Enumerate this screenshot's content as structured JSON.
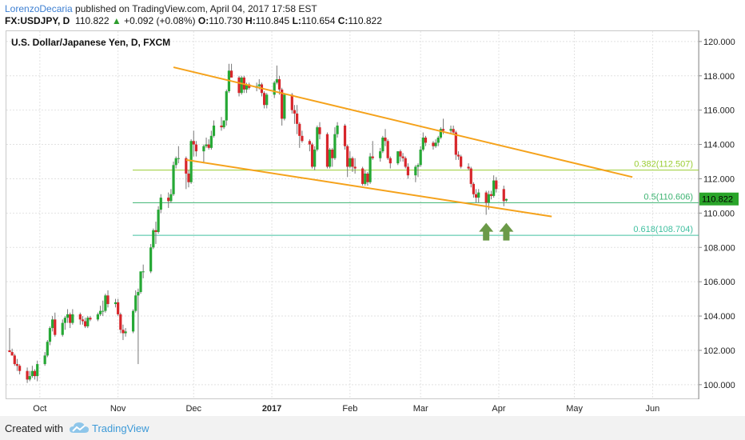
{
  "header": {
    "author": "LorenzoDecaria",
    "published_text": " published on TradingView.com, April 04, 2017 17:58 EST",
    "symbol": "FX:USDJPY, D",
    "last": "110.822",
    "change_arrow": "▲",
    "change": "+0.092 (+0.08%)",
    "open_label": "O:",
    "open": "110.730",
    "high_label": "H:",
    "high": "110.845",
    "low_label": "L:",
    "low": "110.654",
    "close_label": "C:",
    "close": "110.822"
  },
  "footer": {
    "created_with": "Created with",
    "brand": "TradingView"
  },
  "colors": {
    "up": "#26a835",
    "down": "#d7262b",
    "trendline": "#f5a21b",
    "fib_382": "#9acd32",
    "fib_5": "#3cb371",
    "fib_618": "#40c0a0",
    "arrow": "#6b9a48",
    "price_tag": "#2aa52a"
  },
  "chart_data": {
    "type": "candlestick",
    "title": "U.S. Dollar/Japanese Yen, D, FXCM",
    "y_range": [
      99.2,
      120.6
    ],
    "y_ticks": [
      "100.000",
      "102.000",
      "104.000",
      "106.000",
      "108.000",
      "110.000",
      "112.000",
      "114.000",
      "116.000",
      "118.000",
      "120.000"
    ],
    "x_ticks": [
      "Oct",
      "Nov",
      "Dec",
      "2017",
      "Feb",
      "Mar",
      "Apr",
      "May",
      "Jun"
    ],
    "x_tick_dates": [
      "2016-10-01",
      "2016-11-01",
      "2016-12-01",
      "2017-01-01",
      "2017-02-01",
      "2017-03-01",
      "2017-04-01",
      "2017-05-01",
      "2017-06-01"
    ],
    "x_range": [
      "2016-09-19",
      "2017-06-18"
    ],
    "grid": true,
    "last_price": "110.822",
    "fib_levels": [
      {
        "label": "0.382(112.507)",
        "value": 112.507,
        "color_key": "fib_382"
      },
      {
        "label": "0.5(110.606)",
        "value": 110.606,
        "color_key": "fib_5"
      },
      {
        "label": "0.618(108.704)",
        "value": 108.704,
        "color_key": "fib_618"
      }
    ],
    "trendlines": [
      {
        "from": [
          "2016-11-23",
          118.5
        ],
        "to": [
          "2017-05-24",
          112.1
        ]
      },
      {
        "from": [
          "2016-11-28",
          113.1
        ],
        "to": [
          "2017-04-22",
          109.8
        ]
      }
    ],
    "arrows": [
      {
        "date": "2017-03-27",
        "value": 108.4
      },
      {
        "date": "2017-04-04",
        "value": 108.4
      }
    ],
    "candles": [
      {
        "d": "2016-09-19",
        "o": 102.0,
        "h": 103.3,
        "l": 101.9,
        "c": 101.9
      },
      {
        "d": "2016-09-20",
        "o": 101.9,
        "h": 102.1,
        "l": 101.7,
        "c": 101.7
      },
      {
        "d": "2016-09-21",
        "o": 101.7,
        "h": 101.8,
        "l": 101.1,
        "c": 101.2
      },
      {
        "d": "2016-09-22",
        "o": 101.2,
        "h": 101.5,
        "l": 100.8,
        "c": 101.1
      },
      {
        "d": "2016-09-23",
        "o": 101.1,
        "h": 101.2,
        "l": 100.6,
        "c": 100.8
      },
      {
        "d": "2016-09-26",
        "o": 100.8,
        "h": 101.0,
        "l": 100.1,
        "c": 100.3
      },
      {
        "d": "2016-09-27",
        "o": 100.3,
        "h": 100.8,
        "l": 100.2,
        "c": 100.5
      },
      {
        "d": "2016-09-28",
        "o": 100.5,
        "h": 101.1,
        "l": 100.4,
        "c": 100.8
      },
      {
        "d": "2016-09-29",
        "o": 100.8,
        "h": 100.9,
        "l": 100.3,
        "c": 100.5
      },
      {
        "d": "2016-09-30",
        "o": 100.5,
        "h": 101.4,
        "l": 100.2,
        "c": 101.2
      },
      {
        "d": "2016-10-03",
        "o": 101.2,
        "h": 101.9,
        "l": 101.1,
        "c": 101.7
      },
      {
        "d": "2016-10-04",
        "o": 101.7,
        "h": 102.6,
        "l": 101.6,
        "c": 102.5
      },
      {
        "d": "2016-10-05",
        "o": 102.5,
        "h": 103.4,
        "l": 102.3,
        "c": 103.3
      },
      {
        "d": "2016-10-06",
        "o": 103.3,
        "h": 104.0,
        "l": 103.1,
        "c": 103.8
      },
      {
        "d": "2016-10-07",
        "o": 103.8,
        "h": 104.2,
        "l": 102.8,
        "c": 102.9
      },
      {
        "d": "2016-10-10",
        "o": 102.9,
        "h": 103.8,
        "l": 102.8,
        "c": 103.6
      },
      {
        "d": "2016-10-11",
        "o": 103.6,
        "h": 104.0,
        "l": 103.2,
        "c": 103.9
      },
      {
        "d": "2016-10-12",
        "o": 103.9,
        "h": 104.4,
        "l": 103.6,
        "c": 104.1
      },
      {
        "d": "2016-10-13",
        "o": 104.1,
        "h": 104.2,
        "l": 103.3,
        "c": 103.6
      },
      {
        "d": "2016-10-14",
        "o": 103.6,
        "h": 104.4,
        "l": 103.5,
        "c": 104.1
      },
      {
        "d": "2016-10-17",
        "o": 104.1,
        "h": 104.2,
        "l": 103.5,
        "c": 103.8
      },
      {
        "d": "2016-10-18",
        "o": 103.8,
        "h": 104.0,
        "l": 103.5,
        "c": 103.7
      },
      {
        "d": "2016-10-19",
        "o": 103.7,
        "h": 103.9,
        "l": 103.3,
        "c": 103.4
      },
      {
        "d": "2016-10-20",
        "o": 103.4,
        "h": 104.0,
        "l": 103.3,
        "c": 103.9
      },
      {
        "d": "2016-10-21",
        "o": 103.9,
        "h": 104.0,
        "l": 103.7,
        "c": 103.8
      },
      {
        "d": "2016-10-24",
        "o": 103.8,
        "h": 104.2,
        "l": 103.7,
        "c": 104.1
      },
      {
        "d": "2016-10-25",
        "o": 104.1,
        "h": 104.6,
        "l": 104.0,
        "c": 104.3
      },
      {
        "d": "2016-10-26",
        "o": 104.3,
        "h": 104.9,
        "l": 104.0,
        "c": 104.3
      },
      {
        "d": "2016-10-27",
        "o": 104.3,
        "h": 105.3,
        "l": 104.2,
        "c": 105.2
      },
      {
        "d": "2016-10-28",
        "o": 105.2,
        "h": 105.5,
        "l": 104.5,
        "c": 104.7
      },
      {
        "d": "2016-10-31",
        "o": 104.7,
        "h": 105.0,
        "l": 104.5,
        "c": 104.8
      },
      {
        "d": "2016-11-01",
        "o": 104.8,
        "h": 105.0,
        "l": 104.0,
        "c": 104.1
      },
      {
        "d": "2016-11-02",
        "o": 104.1,
        "h": 104.2,
        "l": 103.0,
        "c": 103.2
      },
      {
        "d": "2016-11-03",
        "o": 103.2,
        "h": 103.5,
        "l": 102.6,
        "c": 103.0
      },
      {
        "d": "2016-11-04",
        "o": 103.0,
        "h": 103.3,
        "l": 102.8,
        "c": 103.1
      },
      {
        "d": "2016-11-07",
        "o": 103.1,
        "h": 104.4,
        "l": 103.0,
        "c": 104.3
      },
      {
        "d": "2016-11-08",
        "o": 104.3,
        "h": 105.5,
        "l": 104.2,
        "c": 105.2
      },
      {
        "d": "2016-11-09",
        "o": 105.2,
        "h": 105.6,
        "l": 101.2,
        "c": 105.4
      },
      {
        "d": "2016-11-10",
        "o": 105.4,
        "h": 106.6,
        "l": 105.3,
        "c": 106.6
      },
      {
        "d": "2016-11-11",
        "o": 106.6,
        "h": 107.0,
        "l": 106.2,
        "c": 106.6
      },
      {
        "d": "2016-11-14",
        "o": 106.6,
        "h": 108.2,
        "l": 106.5,
        "c": 108.0
      },
      {
        "d": "2016-11-15",
        "o": 108.0,
        "h": 109.1,
        "l": 107.9,
        "c": 109.0
      },
      {
        "d": "2016-11-16",
        "o": 109.0,
        "h": 109.5,
        "l": 108.2,
        "c": 108.9
      },
      {
        "d": "2016-11-17",
        "o": 108.9,
        "h": 110.4,
        "l": 108.8,
        "c": 110.2
      },
      {
        "d": "2016-11-18",
        "o": 110.2,
        "h": 111.1,
        "l": 110.0,
        "c": 110.9
      },
      {
        "d": "2016-11-21",
        "o": 110.9,
        "h": 111.2,
        "l": 110.3,
        "c": 110.7
      },
      {
        "d": "2016-11-22",
        "o": 110.7,
        "h": 111.4,
        "l": 110.6,
        "c": 111.1
      },
      {
        "d": "2016-11-23",
        "o": 111.1,
        "h": 113.0,
        "l": 111.0,
        "c": 112.8
      },
      {
        "d": "2016-11-24",
        "o": 112.8,
        "h": 113.3,
        "l": 112.6,
        "c": 113.2
      },
      {
        "d": "2016-11-25",
        "o": 113.2,
        "h": 113.9,
        "l": 112.9,
        "c": 113.2
      },
      {
        "d": "2016-11-28",
        "o": 113.2,
        "h": 113.3,
        "l": 111.4,
        "c": 112.3
      },
      {
        "d": "2016-11-29",
        "o": 112.3,
        "h": 112.5,
        "l": 111.5,
        "c": 111.8
      },
      {
        "d": "2016-11-30",
        "o": 111.8,
        "h": 114.3,
        "l": 111.7,
        "c": 114.2
      },
      {
        "d": "2016-12-01",
        "o": 114.2,
        "h": 114.8,
        "l": 113.3,
        "c": 114.0
      },
      {
        "d": "2016-12-02",
        "o": 114.0,
        "h": 114.2,
        "l": 113.3,
        "c": 113.6
      },
      {
        "d": "2016-12-05",
        "o": 113.6,
        "h": 114.0,
        "l": 112.9,
        "c": 113.9
      },
      {
        "d": "2016-12-06",
        "o": 113.9,
        "h": 114.4,
        "l": 113.8,
        "c": 114.0
      },
      {
        "d": "2016-12-07",
        "o": 114.0,
        "h": 114.3,
        "l": 113.7,
        "c": 113.8
      },
      {
        "d": "2016-12-08",
        "o": 113.8,
        "h": 114.8,
        "l": 113.7,
        "c": 114.5
      },
      {
        "d": "2016-12-09",
        "o": 114.5,
        "h": 115.4,
        "l": 114.4,
        "c": 115.1
      },
      {
        "d": "2016-12-12",
        "o": 115.1,
        "h": 115.6,
        "l": 114.8,
        "c": 115.0
      },
      {
        "d": "2016-12-13",
        "o": 115.0,
        "h": 115.4,
        "l": 114.9,
        "c": 115.4
      },
      {
        "d": "2016-12-14",
        "o": 115.4,
        "h": 117.2,
        "l": 115.1,
        "c": 117.1
      },
      {
        "d": "2016-12-15",
        "o": 117.1,
        "h": 118.7,
        "l": 117.0,
        "c": 118.3
      },
      {
        "d": "2016-12-16",
        "o": 118.3,
        "h": 118.7,
        "l": 117.9,
        "c": 117.9
      },
      {
        "d": "2016-12-19",
        "o": 117.9,
        "h": 118.0,
        "l": 116.8,
        "c": 117.0
      },
      {
        "d": "2016-12-20",
        "o": 117.0,
        "h": 118.0,
        "l": 116.9,
        "c": 117.9
      },
      {
        "d": "2016-12-21",
        "o": 117.9,
        "h": 118.0,
        "l": 117.0,
        "c": 117.2
      },
      {
        "d": "2016-12-22",
        "o": 117.2,
        "h": 117.6,
        "l": 117.0,
        "c": 117.5
      },
      {
        "d": "2016-12-23",
        "o": 117.5,
        "h": 117.6,
        "l": 117.2,
        "c": 117.3
      },
      {
        "d": "2016-12-26",
        "o": 117.3,
        "h": 117.6,
        "l": 117.1,
        "c": 117.4
      },
      {
        "d": "2016-12-27",
        "o": 117.4,
        "h": 117.8,
        "l": 117.2,
        "c": 117.5
      },
      {
        "d": "2016-12-28",
        "o": 117.5,
        "h": 117.6,
        "l": 116.8,
        "c": 117.0
      },
      {
        "d": "2016-12-29",
        "o": 117.0,
        "h": 117.1,
        "l": 116.1,
        "c": 116.3
      },
      {
        "d": "2016-12-30",
        "o": 116.3,
        "h": 117.0,
        "l": 116.1,
        "c": 116.9
      },
      {
        "d": "2017-01-02",
        "o": 116.9,
        "h": 117.7,
        "l": 116.7,
        "c": 117.6
      },
      {
        "d": "2017-01-03",
        "o": 117.6,
        "h": 118.6,
        "l": 117.5,
        "c": 117.8
      },
      {
        "d": "2017-01-04",
        "o": 117.8,
        "h": 118.0,
        "l": 116.9,
        "c": 117.2
      },
      {
        "d": "2017-01-05",
        "o": 117.2,
        "h": 117.3,
        "l": 115.1,
        "c": 115.5
      },
      {
        "d": "2017-01-06",
        "o": 115.5,
        "h": 117.0,
        "l": 115.4,
        "c": 116.9
      },
      {
        "d": "2017-01-09",
        "o": 116.9,
        "h": 117.0,
        "l": 115.8,
        "c": 116.0
      },
      {
        "d": "2017-01-10",
        "o": 116.0,
        "h": 116.3,
        "l": 115.2,
        "c": 115.8
      },
      {
        "d": "2017-01-11",
        "o": 115.8,
        "h": 116.3,
        "l": 114.6,
        "c": 115.2
      },
      {
        "d": "2017-01-12",
        "o": 115.2,
        "h": 115.3,
        "l": 113.8,
        "c": 114.5
      },
      {
        "d": "2017-01-13",
        "o": 114.5,
        "h": 114.8,
        "l": 114.1,
        "c": 114.2
      },
      {
        "d": "2017-01-16",
        "o": 114.2,
        "h": 114.3,
        "l": 113.6,
        "c": 114.0
      },
      {
        "d": "2017-01-17",
        "o": 114.0,
        "h": 114.1,
        "l": 112.6,
        "c": 112.7
      },
      {
        "d": "2017-01-18",
        "o": 112.7,
        "h": 113.9,
        "l": 112.5,
        "c": 113.7
      },
      {
        "d": "2017-01-19",
        "o": 113.7,
        "h": 115.1,
        "l": 113.6,
        "c": 115.0
      },
      {
        "d": "2017-01-20",
        "o": 115.0,
        "h": 115.3,
        "l": 114.3,
        "c": 114.6
      },
      {
        "d": "2017-01-23",
        "o": 114.6,
        "h": 114.7,
        "l": 112.6,
        "c": 112.7
      },
      {
        "d": "2017-01-24",
        "o": 112.7,
        "h": 113.8,
        "l": 112.6,
        "c": 113.7
      },
      {
        "d": "2017-01-25",
        "o": 113.7,
        "h": 113.8,
        "l": 112.7,
        "c": 113.2
      },
      {
        "d": "2017-01-26",
        "o": 113.2,
        "h": 115.0,
        "l": 113.1,
        "c": 114.6
      },
      {
        "d": "2017-01-27",
        "o": 114.6,
        "h": 115.3,
        "l": 114.4,
        "c": 115.1
      },
      {
        "d": "2017-01-30",
        "o": 115.1,
        "h": 115.2,
        "l": 113.7,
        "c": 113.9
      },
      {
        "d": "2017-01-31",
        "o": 113.9,
        "h": 114.0,
        "l": 112.1,
        "c": 112.7
      },
      {
        "d": "2017-02-01",
        "o": 112.7,
        "h": 113.6,
        "l": 112.6,
        "c": 113.2
      },
      {
        "d": "2017-02-02",
        "o": 113.2,
        "h": 113.3,
        "l": 112.4,
        "c": 112.7
      },
      {
        "d": "2017-02-03",
        "o": 112.7,
        "h": 113.2,
        "l": 112.3,
        "c": 112.6
      },
      {
        "d": "2017-02-06",
        "o": 112.6,
        "h": 112.7,
        "l": 111.6,
        "c": 111.7
      },
      {
        "d": "2017-02-07",
        "o": 111.7,
        "h": 112.5,
        "l": 111.6,
        "c": 112.3
      },
      {
        "d": "2017-02-08",
        "o": 112.3,
        "h": 112.4,
        "l": 111.6,
        "c": 111.8
      },
      {
        "d": "2017-02-09",
        "o": 111.8,
        "h": 113.5,
        "l": 111.7,
        "c": 113.3
      },
      {
        "d": "2017-02-10",
        "o": 113.3,
        "h": 114.2,
        "l": 113.1,
        "c": 113.2
      },
      {
        "d": "2017-02-13",
        "o": 113.2,
        "h": 113.8,
        "l": 113.0,
        "c": 113.6
      },
      {
        "d": "2017-02-14",
        "o": 113.6,
        "h": 114.5,
        "l": 113.5,
        "c": 114.4
      },
      {
        "d": "2017-02-15",
        "o": 114.4,
        "h": 114.9,
        "l": 113.9,
        "c": 114.2
      },
      {
        "d": "2017-02-16",
        "o": 114.2,
        "h": 114.3,
        "l": 113.1,
        "c": 113.2
      },
      {
        "d": "2017-02-17",
        "o": 113.2,
        "h": 113.3,
        "l": 112.6,
        "c": 112.9
      },
      {
        "d": "2017-02-20",
        "o": 112.9,
        "h": 113.6,
        "l": 112.8,
        "c": 113.6
      },
      {
        "d": "2017-02-21",
        "o": 113.6,
        "h": 113.7,
        "l": 113.0,
        "c": 113.3
      },
      {
        "d": "2017-02-22",
        "o": 113.3,
        "h": 113.5,
        "l": 113.0,
        "c": 113.2
      },
      {
        "d": "2017-02-23",
        "o": 113.2,
        "h": 113.3,
        "l": 112.6,
        "c": 112.7
      },
      {
        "d": "2017-02-24",
        "o": 112.7,
        "h": 112.9,
        "l": 112.0,
        "c": 112.2
      },
      {
        "d": "2017-02-27",
        "o": 112.2,
        "h": 112.8,
        "l": 111.8,
        "c": 112.7
      },
      {
        "d": "2017-02-28",
        "o": 112.7,
        "h": 112.9,
        "l": 112.1,
        "c": 112.8
      },
      {
        "d": "2017-03-01",
        "o": 112.8,
        "h": 113.9,
        "l": 112.7,
        "c": 113.7
      },
      {
        "d": "2017-03-02",
        "o": 113.7,
        "h": 114.7,
        "l": 113.6,
        "c": 114.4
      },
      {
        "d": "2017-03-03",
        "o": 114.4,
        "h": 114.5,
        "l": 113.9,
        "c": 114.1
      },
      {
        "d": "2017-03-06",
        "o": 114.1,
        "h": 114.2,
        "l": 113.7,
        "c": 113.9
      },
      {
        "d": "2017-03-07",
        "o": 113.9,
        "h": 114.3,
        "l": 113.8,
        "c": 114.1
      },
      {
        "d": "2017-03-08",
        "o": 114.1,
        "h": 114.5,
        "l": 113.9,
        "c": 114.4
      },
      {
        "d": "2017-03-09",
        "o": 114.4,
        "h": 115.0,
        "l": 114.3,
        "c": 114.9
      },
      {
        "d": "2017-03-10",
        "o": 114.9,
        "h": 115.5,
        "l": 114.6,
        "c": 114.8
      },
      {
        "d": "2017-03-13",
        "o": 114.8,
        "h": 115.1,
        "l": 114.6,
        "c": 114.9
      },
      {
        "d": "2017-03-14",
        "o": 114.9,
        "h": 115.1,
        "l": 114.6,
        "c": 114.7
      },
      {
        "d": "2017-03-15",
        "o": 114.7,
        "h": 114.8,
        "l": 113.1,
        "c": 113.4
      },
      {
        "d": "2017-03-16",
        "o": 113.4,
        "h": 113.6,
        "l": 113.1,
        "c": 113.3
      },
      {
        "d": "2017-03-17",
        "o": 113.3,
        "h": 113.4,
        "l": 112.6,
        "c": 112.7
      },
      {
        "d": "2017-03-20",
        "o": 112.7,
        "h": 112.9,
        "l": 112.5,
        "c": 112.6
      },
      {
        "d": "2017-03-21",
        "o": 112.6,
        "h": 112.7,
        "l": 111.5,
        "c": 111.7
      },
      {
        "d": "2017-03-22",
        "o": 111.7,
        "h": 111.8,
        "l": 110.9,
        "c": 111.1
      },
      {
        "d": "2017-03-23",
        "o": 111.1,
        "h": 111.4,
        "l": 110.6,
        "c": 110.9
      },
      {
        "d": "2017-03-24",
        "o": 110.9,
        "h": 111.4,
        "l": 110.6,
        "c": 111.2
      },
      {
        "d": "2017-03-27",
        "o": 111.2,
        "h": 111.3,
        "l": 109.9,
        "c": 110.6
      },
      {
        "d": "2017-03-28",
        "o": 110.6,
        "h": 111.3,
        "l": 110.2,
        "c": 111.1
      },
      {
        "d": "2017-03-29",
        "o": 111.1,
        "h": 111.3,
        "l": 110.8,
        "c": 111.0
      },
      {
        "d": "2017-03-30",
        "o": 111.0,
        "h": 112.2,
        "l": 110.9,
        "c": 111.9
      },
      {
        "d": "2017-03-31",
        "o": 111.9,
        "h": 112.1,
        "l": 111.2,
        "c": 111.4
      },
      {
        "d": "2017-04-03",
        "o": 111.4,
        "h": 111.6,
        "l": 110.4,
        "c": 110.7
      },
      {
        "d": "2017-04-04",
        "o": 110.73,
        "h": 110.845,
        "l": 110.654,
        "c": 110.822
      }
    ]
  }
}
